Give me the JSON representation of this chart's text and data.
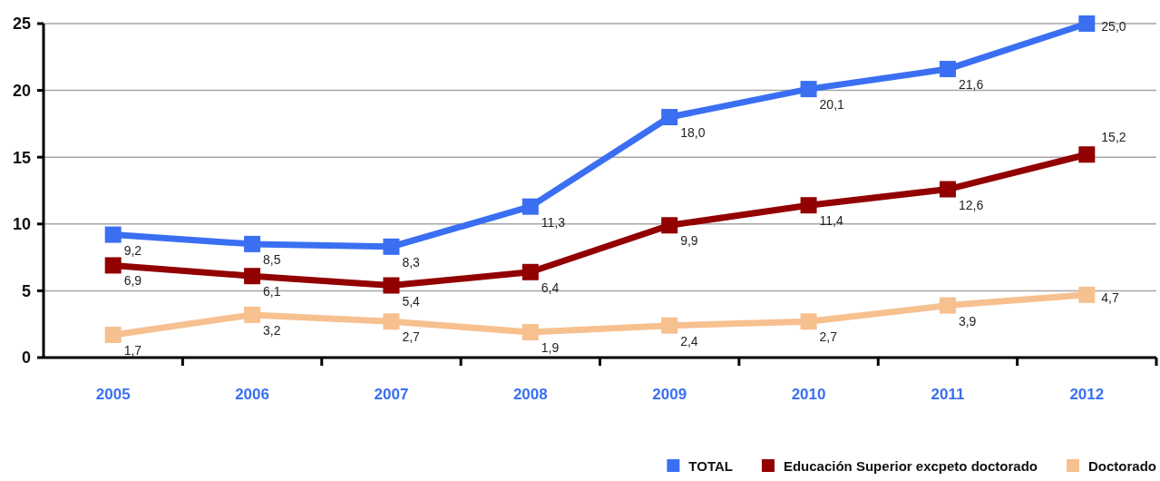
{
  "chart_data": {
    "type": "line",
    "categories": [
      "2005",
      "2006",
      "2007",
      "2008",
      "2009",
      "2010",
      "2011",
      "2012"
    ],
    "series": [
      {
        "name": "TOTAL",
        "color": "#3a6ff2",
        "values": [
          9.2,
          8.5,
          8.3,
          11.3,
          18.0,
          20.1,
          21.6,
          25.0
        ],
        "value_labels": [
          "9,2",
          "8,5",
          "8,3",
          "11,3",
          "18,0",
          "20,1",
          "21,6",
          "25,0"
        ]
      },
      {
        "name": "Educación Superior excpeto doctorado",
        "color": "#920000",
        "values": [
          6.9,
          6.1,
          5.4,
          6.4,
          9.9,
          11.4,
          12.6,
          15.2
        ],
        "value_labels": [
          "6,9",
          "6,1",
          "5,4",
          "6,4",
          "9,9",
          "11,4",
          "12,6",
          "15,2"
        ]
      },
      {
        "name": "Doctorado",
        "color": "#f7c08f",
        "values": [
          1.7,
          3.2,
          2.7,
          1.9,
          2.4,
          2.7,
          3.9,
          4.7
        ],
        "value_labels": [
          "1,7",
          "3,2",
          "2,7",
          "1,9",
          "2,4",
          "2,7",
          "3,9",
          "4,7"
        ]
      }
    ],
    "ylim": [
      0,
      25
    ],
    "yticks": [
      0,
      5,
      10,
      15,
      20,
      25
    ],
    "grid": "y",
    "legend": "bottom",
    "marker": "square",
    "line_style": "solid"
  }
}
